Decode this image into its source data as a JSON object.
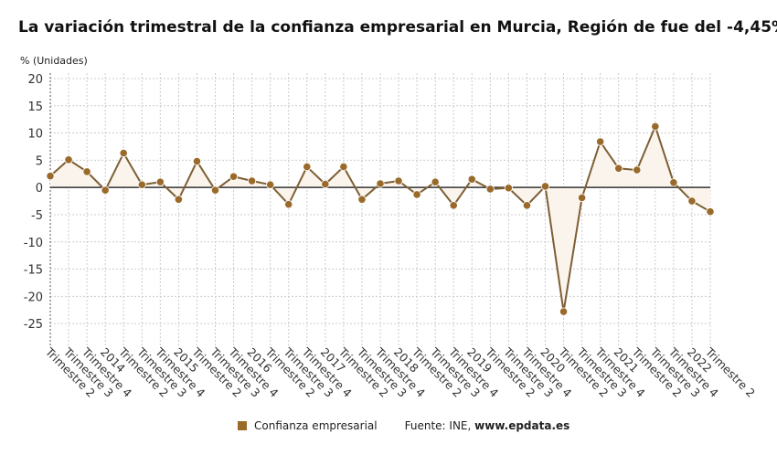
{
  "title": "La variación trimestral de la confianza empresarial en Murcia, Región de fue del -4,45%",
  "unit_label": "% (Unidades)",
  "legend": {
    "series_label": "Confianza empresarial",
    "source_prefix": "Fuente: INE, ",
    "source_site": "www.epdata.es"
  },
  "colors": {
    "series": "#9a6a2a",
    "line": "#7d5f35",
    "fill": "#fbf4ec",
    "zero": "#333333",
    "grid": "#cccccc"
  },
  "chart_data": {
    "type": "line",
    "xlabel": "",
    "ylabel": "% (Unidades)",
    "ylim": [
      -29,
      21
    ],
    "yticks": [
      20,
      15,
      10,
      5,
      0,
      -5,
      -10,
      -15,
      -20,
      -25
    ],
    "grid": true,
    "legend_position": "bottom",
    "categories": [
      "Trimestre 2",
      "Trimestre 3",
      "Trimestre 4",
      "2014",
      "Trimestre 2",
      "Trimestre 3",
      "Trimestre 4",
      "2015",
      "Trimestre 2",
      "Trimestre 3",
      "Trimestre 4",
      "2016",
      "Trimestre 2",
      "Trimestre 3",
      "Trimestre 4",
      "2017",
      "Trimestre 2",
      "Trimestre 3",
      "Trimestre 4",
      "2018",
      "Trimestre 2",
      "Trimestre 3",
      "Trimestre 4",
      "2019",
      "Trimestre 2",
      "Trimestre 3",
      "Trimestre 4",
      "2020",
      "Trimestre 2",
      "Trimestre 3",
      "Trimestre 4",
      "2021",
      "Trimestre 2",
      "Trimestre 3",
      "Trimestre 4",
      "2022",
      "Trimestre 2"
    ],
    "series": [
      {
        "name": "Confianza empresarial",
        "values": [
          2.1,
          5.1,
          2.9,
          -0.5,
          6.3,
          0.5,
          1.0,
          -2.2,
          4.8,
          -0.5,
          2.0,
          1.2,
          0.5,
          -3.1,
          3.8,
          0.6,
          3.8,
          -2.2,
          0.7,
          1.2,
          -1.3,
          1.0,
          -3.3,
          1.5,
          -0.3,
          -0.1,
          -3.3,
          0.2,
          -22.8,
          -1.9,
          8.4,
          3.5,
          3.2,
          11.2,
          0.9,
          -2.5,
          -4.45
        ]
      }
    ]
  }
}
